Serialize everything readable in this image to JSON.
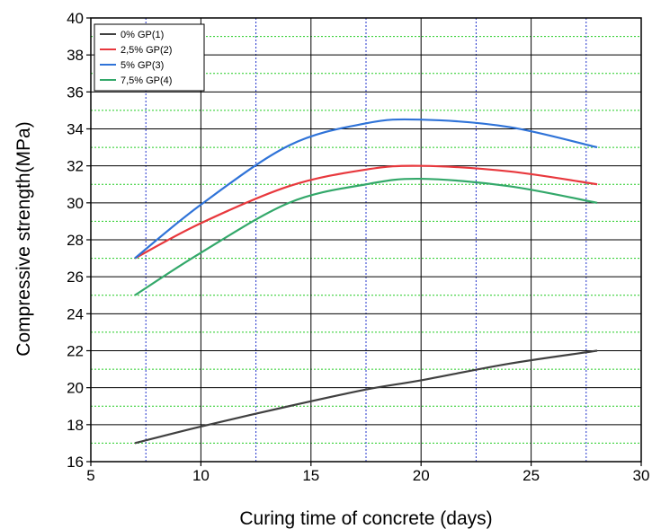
{
  "chart_data": {
    "type": "line",
    "title": "",
    "xlabel": "Curing time of concrete (days)",
    "ylabel": "Compressive strength(MPa)",
    "xlim": [
      5,
      30
    ],
    "ylim": [
      16,
      40
    ],
    "xticks": [
      5,
      10,
      15,
      20,
      25,
      30
    ],
    "yticks": [
      16,
      18,
      20,
      22,
      24,
      26,
      28,
      30,
      32,
      34,
      36,
      38,
      40
    ],
    "grid": {
      "major_vertical": "solid black",
      "minor_vertical": "dotted blue",
      "major_horizontal": "solid black",
      "minor_horizontal": "dotted green"
    },
    "legend_position": "top-left",
    "series": [
      {
        "name": "0% GP(1)",
        "color": "#404040",
        "x": [
          7,
          10,
          14,
          17.5,
          20,
          24,
          28
        ],
        "y": [
          17.0,
          17.9,
          19.0,
          19.9,
          20.4,
          21.3,
          22.0
        ]
      },
      {
        "name": "2,5% GP(2)",
        "color": "#e8383d",
        "x": [
          7,
          10,
          14,
          17.5,
          20,
          24,
          28
        ],
        "y": [
          27.0,
          28.9,
          30.9,
          31.8,
          32.0,
          31.7,
          31.0
        ]
      },
      {
        "name": "5% GP(3)",
        "color": "#2f73d8",
        "x": [
          7,
          10,
          14,
          17.5,
          20,
          24,
          28
        ],
        "y": [
          27.0,
          29.9,
          33.1,
          34.3,
          34.5,
          34.1,
          33.0
        ]
      },
      {
        "name": "7,5% GP(4)",
        "color": "#33a86a",
        "x": [
          7,
          10,
          14,
          17.5,
          20,
          24,
          28
        ],
        "y": [
          25.0,
          27.3,
          30.0,
          31.0,
          31.3,
          30.9,
          30.0
        ]
      }
    ]
  }
}
